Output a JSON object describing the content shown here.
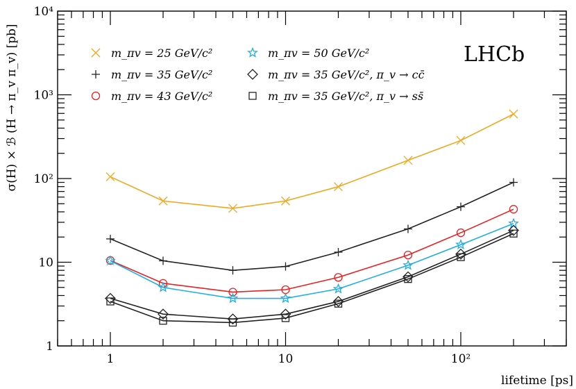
{
  "chart_data": {
    "type": "line",
    "title": "",
    "xlabel": "lifetime [ps]",
    "ylabel": "σ(H) × ℬ (H → π_v π_v) [pb]",
    "xscale": "log",
    "yscale": "log",
    "xlim": [
      0.5,
      400
    ],
    "ylim": [
      1,
      10000
    ],
    "x_ticks": [
      {
        "value": 1,
        "label": "1"
      },
      {
        "value": 10,
        "label": "10"
      },
      {
        "value": 100,
        "label": "10²"
      }
    ],
    "y_ticks": [
      {
        "value": 1,
        "label": "1"
      },
      {
        "value": 10,
        "label": "10"
      },
      {
        "value": 100,
        "label": "10²"
      },
      {
        "value": 1000,
        "label": "10³"
      },
      {
        "value": 10000,
        "label": "10⁴"
      }
    ],
    "x": [
      1,
      2,
      5,
      10,
      20,
      50,
      100,
      200
    ],
    "series": [
      {
        "name": "m_πv = 25 GeV/c²",
        "color": "#f0a81e",
        "marker": "x",
        "values": [
          105,
          54,
          44,
          54,
          80,
          165,
          285,
          590
        ]
      },
      {
        "name": "m_πv = 35 GeV/c²",
        "color": "#222222",
        "marker": "plus",
        "values": [
          19,
          10.4,
          8.0,
          8.9,
          13.2,
          25,
          46,
          90
        ]
      },
      {
        "name": "m_πv = 43 GeV/c²",
        "color": "#e8201f",
        "marker": "circle",
        "values": [
          10.5,
          5.6,
          4.4,
          4.7,
          6.6,
          12.2,
          22.5,
          43
        ]
      },
      {
        "name": "m_πv = 50 GeV/c²",
        "color": "#1eaee8",
        "marker": "star",
        "values": [
          10.4,
          5.0,
          3.7,
          3.7,
          4.8,
          9.2,
          16.2,
          29
        ]
      },
      {
        "name": "m_πv = 35 GeV/c², π_v → cc̄",
        "color": "#222222",
        "marker": "diamond",
        "values": [
          3.7,
          2.4,
          2.1,
          2.4,
          3.4,
          6.7,
          12.5,
          24
        ]
      },
      {
        "name": "m_πv = 35 GeV/c², π_v → ss̄",
        "color": "#222222",
        "marker": "square",
        "values": [
          3.4,
          2.0,
          1.9,
          2.15,
          3.2,
          6.3,
          11.5,
          22
        ]
      }
    ],
    "legend": {
      "placement": "top-left",
      "columns": 2
    },
    "annotations": [
      "LHCb"
    ],
    "grid": false
  }
}
